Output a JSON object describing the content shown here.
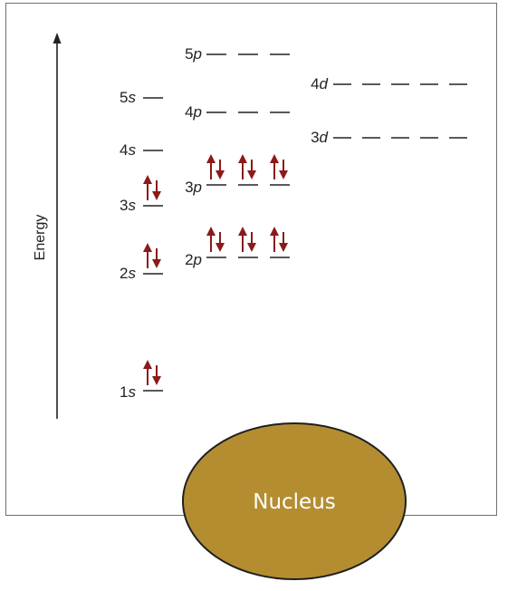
{
  "diagram": {
    "axis_label": "Energy",
    "nucleus_label": "Nucleus",
    "colors": {
      "nucleus_fill": "#b58d31",
      "nucleus_stroke": "#1f1f1f",
      "arrow": "#8b1a1a",
      "line": "#222222",
      "frame": "#6f6f6f"
    },
    "orbitals": [
      {
        "id": "1s",
        "n": "1",
        "l": "s",
        "boxes": 1,
        "electrons": 2
      },
      {
        "id": "2s",
        "n": "2",
        "l": "s",
        "boxes": 1,
        "electrons": 2
      },
      {
        "id": "2p",
        "n": "2",
        "l": "p",
        "boxes": 3,
        "electrons": 6
      },
      {
        "id": "3s",
        "n": "3",
        "l": "s",
        "boxes": 1,
        "electrons": 2
      },
      {
        "id": "3p",
        "n": "3",
        "l": "p",
        "boxes": 3,
        "electrons": 6
      },
      {
        "id": "4s",
        "n": "4",
        "l": "s",
        "boxes": 1,
        "electrons": 0
      },
      {
        "id": "3d",
        "n": "3",
        "l": "d",
        "boxes": 5,
        "electrons": 0
      },
      {
        "id": "4p",
        "n": "4",
        "l": "p",
        "boxes": 3,
        "electrons": 0
      },
      {
        "id": "5s",
        "n": "5",
        "l": "s",
        "boxes": 1,
        "electrons": 0
      },
      {
        "id": "4d",
        "n": "4",
        "l": "d",
        "boxes": 5,
        "electrons": 0
      },
      {
        "id": "5p",
        "n": "5",
        "l": "p",
        "boxes": 3,
        "electrons": 0
      }
    ]
  }
}
